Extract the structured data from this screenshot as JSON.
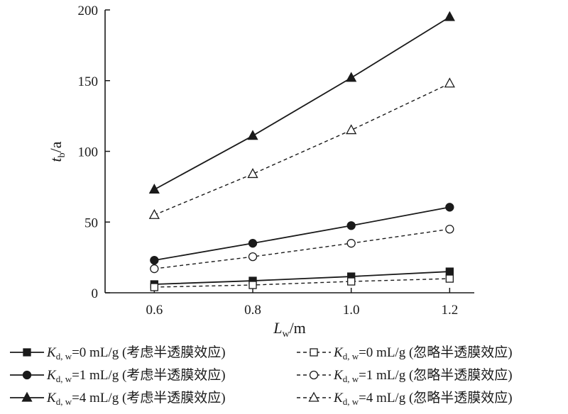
{
  "chart_data": {
    "type": "line",
    "x": [
      0.6,
      0.8,
      1.0,
      1.2
    ],
    "xlim": [
      0.5,
      1.25
    ],
    "ylim": [
      0,
      200
    ],
    "x_ticks": [
      "0.6",
      "0.8",
      "1.0",
      "1.2"
    ],
    "y_ticks": [
      "0",
      "50",
      "100",
      "150",
      "200"
    ],
    "xlabel": {
      "main": "L",
      "sub": "w",
      "unit": "/m"
    },
    "ylabel": {
      "main": "t",
      "sub": "b",
      "unit": "/a"
    },
    "grid": false,
    "legend_position": "bottom",
    "series": [
      {
        "name": "K_d,w=0 mL/g (考虑半透膜效应)",
        "label_main": "K",
        "label_sub": "d, w",
        "label_rest": "=0 mL/g (考虑半透膜效应)",
        "marker": "square",
        "filled": true,
        "dashed": false,
        "values": [
          6,
          8.5,
          11.5,
          15
        ]
      },
      {
        "name": "K_d,w=1 mL/g (考虑半透膜效应)",
        "label_main": "K",
        "label_sub": "d, w",
        "label_rest": "=1 mL/g (考虑半透膜效应)",
        "marker": "circle",
        "filled": true,
        "dashed": false,
        "values": [
          23,
          35,
          47.5,
          60.5
        ]
      },
      {
        "name": "K_d,w=4 mL/g (考虑半透膜效应)",
        "label_main": "K",
        "label_sub": "d, w",
        "label_rest": "=4 mL/g (考虑半透膜效应)",
        "marker": "triangle",
        "filled": true,
        "dashed": false,
        "values": [
          73,
          111,
          152,
          195
        ]
      },
      {
        "name": "K_d,w=0 mL/g (忽略半透膜效应)",
        "label_main": "K",
        "label_sub": "d, w",
        "label_rest": "=0 mL/g (忽略半透膜效应)",
        "marker": "square",
        "filled": false,
        "dashed": true,
        "values": [
          4,
          5.5,
          8,
          10
        ]
      },
      {
        "name": "K_d,w=1 mL/g (忽略半透膜效应)",
        "label_main": "K",
        "label_sub": "d, w",
        "label_rest": "=1 mL/g (忽略半透膜效应)",
        "marker": "circle",
        "filled": false,
        "dashed": true,
        "values": [
          17,
          25.5,
          35,
          45
        ]
      },
      {
        "name": "K_d,w=4 mL/g (忽略半透膜效应)",
        "label_main": "K",
        "label_sub": "d, w",
        "label_rest": "=4 mL/g (忽略半透膜效应)",
        "marker": "triangle",
        "filled": false,
        "dashed": true,
        "values": [
          55,
          84,
          115,
          148
        ]
      }
    ]
  }
}
